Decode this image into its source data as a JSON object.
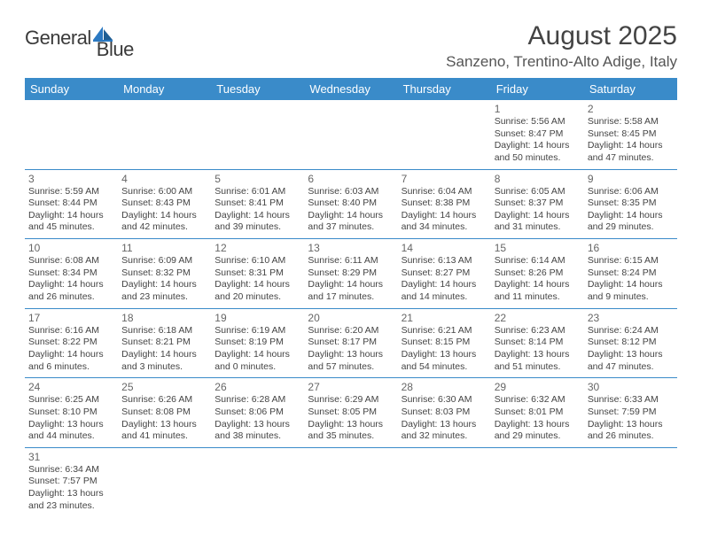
{
  "logo": {
    "text1": "General",
    "text2": "Blue"
  },
  "title": "August 2025",
  "location": "Sanzeno, Trentino-Alto Adige, Italy",
  "colors": {
    "header_bg": "#3a8bc9",
    "header_text": "#ffffff",
    "rule": "#3a8bc9"
  },
  "weekdays": [
    "Sunday",
    "Monday",
    "Tuesday",
    "Wednesday",
    "Thursday",
    "Friday",
    "Saturday"
  ],
  "weeks": [
    [
      null,
      null,
      null,
      null,
      null,
      {
        "n": "1",
        "sr": "Sunrise: 5:56 AM",
        "ss": "Sunset: 8:47 PM",
        "d1": "Daylight: 14 hours",
        "d2": "and 50 minutes."
      },
      {
        "n": "2",
        "sr": "Sunrise: 5:58 AM",
        "ss": "Sunset: 8:45 PM",
        "d1": "Daylight: 14 hours",
        "d2": "and 47 minutes."
      }
    ],
    [
      {
        "n": "3",
        "sr": "Sunrise: 5:59 AM",
        "ss": "Sunset: 8:44 PM",
        "d1": "Daylight: 14 hours",
        "d2": "and 45 minutes."
      },
      {
        "n": "4",
        "sr": "Sunrise: 6:00 AM",
        "ss": "Sunset: 8:43 PM",
        "d1": "Daylight: 14 hours",
        "d2": "and 42 minutes."
      },
      {
        "n": "5",
        "sr": "Sunrise: 6:01 AM",
        "ss": "Sunset: 8:41 PM",
        "d1": "Daylight: 14 hours",
        "d2": "and 39 minutes."
      },
      {
        "n": "6",
        "sr": "Sunrise: 6:03 AM",
        "ss": "Sunset: 8:40 PM",
        "d1": "Daylight: 14 hours",
        "d2": "and 37 minutes."
      },
      {
        "n": "7",
        "sr": "Sunrise: 6:04 AM",
        "ss": "Sunset: 8:38 PM",
        "d1": "Daylight: 14 hours",
        "d2": "and 34 minutes."
      },
      {
        "n": "8",
        "sr": "Sunrise: 6:05 AM",
        "ss": "Sunset: 8:37 PM",
        "d1": "Daylight: 14 hours",
        "d2": "and 31 minutes."
      },
      {
        "n": "9",
        "sr": "Sunrise: 6:06 AM",
        "ss": "Sunset: 8:35 PM",
        "d1": "Daylight: 14 hours",
        "d2": "and 29 minutes."
      }
    ],
    [
      {
        "n": "10",
        "sr": "Sunrise: 6:08 AM",
        "ss": "Sunset: 8:34 PM",
        "d1": "Daylight: 14 hours",
        "d2": "and 26 minutes."
      },
      {
        "n": "11",
        "sr": "Sunrise: 6:09 AM",
        "ss": "Sunset: 8:32 PM",
        "d1": "Daylight: 14 hours",
        "d2": "and 23 minutes."
      },
      {
        "n": "12",
        "sr": "Sunrise: 6:10 AM",
        "ss": "Sunset: 8:31 PM",
        "d1": "Daylight: 14 hours",
        "d2": "and 20 minutes."
      },
      {
        "n": "13",
        "sr": "Sunrise: 6:11 AM",
        "ss": "Sunset: 8:29 PM",
        "d1": "Daylight: 14 hours",
        "d2": "and 17 minutes."
      },
      {
        "n": "14",
        "sr": "Sunrise: 6:13 AM",
        "ss": "Sunset: 8:27 PM",
        "d1": "Daylight: 14 hours",
        "d2": "and 14 minutes."
      },
      {
        "n": "15",
        "sr": "Sunrise: 6:14 AM",
        "ss": "Sunset: 8:26 PM",
        "d1": "Daylight: 14 hours",
        "d2": "and 11 minutes."
      },
      {
        "n": "16",
        "sr": "Sunrise: 6:15 AM",
        "ss": "Sunset: 8:24 PM",
        "d1": "Daylight: 14 hours",
        "d2": "and 9 minutes."
      }
    ],
    [
      {
        "n": "17",
        "sr": "Sunrise: 6:16 AM",
        "ss": "Sunset: 8:22 PM",
        "d1": "Daylight: 14 hours",
        "d2": "and 6 minutes."
      },
      {
        "n": "18",
        "sr": "Sunrise: 6:18 AM",
        "ss": "Sunset: 8:21 PM",
        "d1": "Daylight: 14 hours",
        "d2": "and 3 minutes."
      },
      {
        "n": "19",
        "sr": "Sunrise: 6:19 AM",
        "ss": "Sunset: 8:19 PM",
        "d1": "Daylight: 14 hours",
        "d2": "and 0 minutes."
      },
      {
        "n": "20",
        "sr": "Sunrise: 6:20 AM",
        "ss": "Sunset: 8:17 PM",
        "d1": "Daylight: 13 hours",
        "d2": "and 57 minutes."
      },
      {
        "n": "21",
        "sr": "Sunrise: 6:21 AM",
        "ss": "Sunset: 8:15 PM",
        "d1": "Daylight: 13 hours",
        "d2": "and 54 minutes."
      },
      {
        "n": "22",
        "sr": "Sunrise: 6:23 AM",
        "ss": "Sunset: 8:14 PM",
        "d1": "Daylight: 13 hours",
        "d2": "and 51 minutes."
      },
      {
        "n": "23",
        "sr": "Sunrise: 6:24 AM",
        "ss": "Sunset: 8:12 PM",
        "d1": "Daylight: 13 hours",
        "d2": "and 47 minutes."
      }
    ],
    [
      {
        "n": "24",
        "sr": "Sunrise: 6:25 AM",
        "ss": "Sunset: 8:10 PM",
        "d1": "Daylight: 13 hours",
        "d2": "and 44 minutes."
      },
      {
        "n": "25",
        "sr": "Sunrise: 6:26 AM",
        "ss": "Sunset: 8:08 PM",
        "d1": "Daylight: 13 hours",
        "d2": "and 41 minutes."
      },
      {
        "n": "26",
        "sr": "Sunrise: 6:28 AM",
        "ss": "Sunset: 8:06 PM",
        "d1": "Daylight: 13 hours",
        "d2": "and 38 minutes."
      },
      {
        "n": "27",
        "sr": "Sunrise: 6:29 AM",
        "ss": "Sunset: 8:05 PM",
        "d1": "Daylight: 13 hours",
        "d2": "and 35 minutes."
      },
      {
        "n": "28",
        "sr": "Sunrise: 6:30 AM",
        "ss": "Sunset: 8:03 PM",
        "d1": "Daylight: 13 hours",
        "d2": "and 32 minutes."
      },
      {
        "n": "29",
        "sr": "Sunrise: 6:32 AM",
        "ss": "Sunset: 8:01 PM",
        "d1": "Daylight: 13 hours",
        "d2": "and 29 minutes."
      },
      {
        "n": "30",
        "sr": "Sunrise: 6:33 AM",
        "ss": "Sunset: 7:59 PM",
        "d1": "Daylight: 13 hours",
        "d2": "and 26 minutes."
      }
    ],
    [
      {
        "n": "31",
        "sr": "Sunrise: 6:34 AM",
        "ss": "Sunset: 7:57 PM",
        "d1": "Daylight: 13 hours",
        "d2": "and 23 minutes."
      },
      null,
      null,
      null,
      null,
      null,
      null
    ]
  ]
}
